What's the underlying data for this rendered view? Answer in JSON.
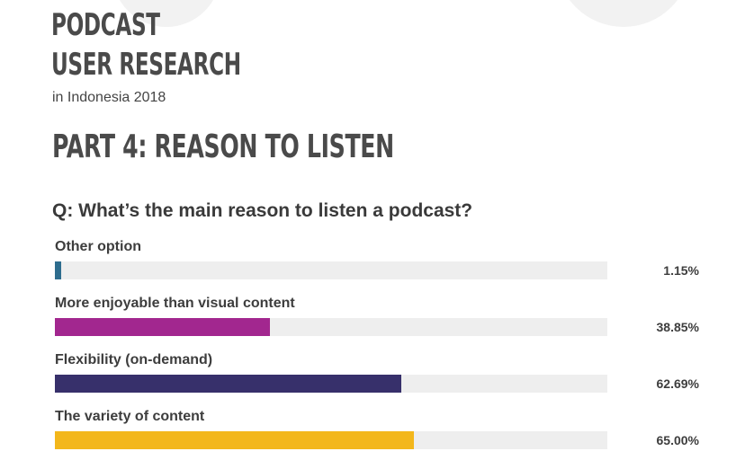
{
  "header": {
    "title_line1": "PODCAST",
    "title_line2": "USER RESEARCH",
    "subtitle": "in Indonesia 2018",
    "section": "PART 4: REASON TO LISTEN",
    "question": "Q: What’s the main reason to listen a podcast?"
  },
  "chart_data": {
    "type": "bar",
    "orientation": "horizontal",
    "categories": [
      "Other option",
      "More enjoyable than visual content",
      "Flexibility (on-demand)",
      "The variety of content"
    ],
    "values": [
      1.15,
      38.85,
      62.69,
      65.0
    ],
    "value_labels": [
      "1.15%",
      "38.85%",
      "62.69%",
      "65.00%"
    ],
    "colors": [
      "#2e6d8e",
      "#a2278f",
      "#37306b",
      "#f3b71b"
    ],
    "xlim": [
      0,
      100
    ],
    "title": "",
    "xlabel": "",
    "ylabel": ""
  }
}
